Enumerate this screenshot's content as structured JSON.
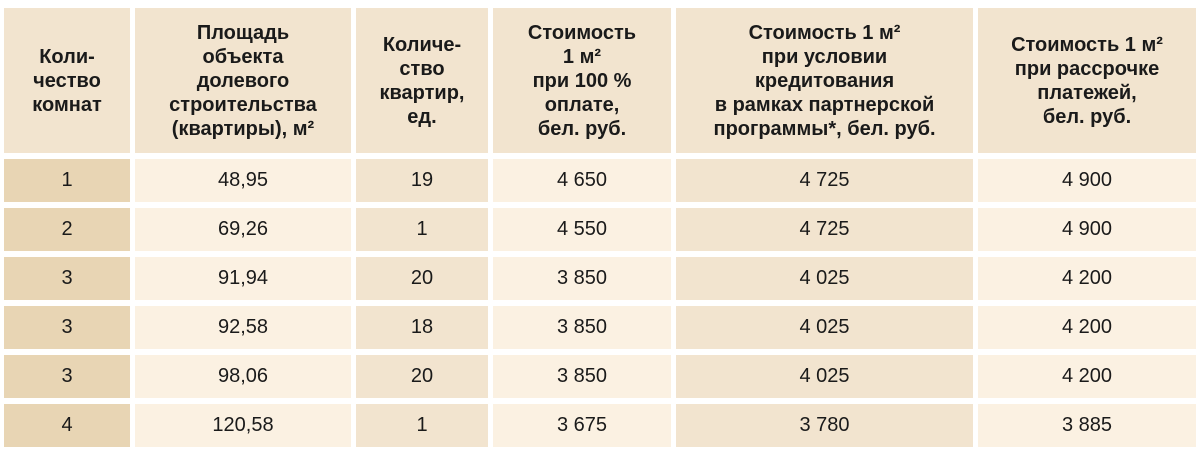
{
  "table": {
    "headers": [
      "Коли-\nчество\nкомнат",
      "Площадь\nобъекта\nдолевого\nстроительства\n(квартиры), м²",
      "Количе-\nство\nквартир,\nед.",
      "Стоимость\n1 м²\nпри 100 %\nоплате,\nбел. руб.",
      "Стоимость 1 м²\nпри условии\nкредитования\nв рамках партнерской\nпрограммы*, бел. руб.",
      "Стоимость 1 м²\nпри рассрочке\nплатежей,\nбел. руб."
    ],
    "rows": [
      [
        "1",
        "48,95",
        "19",
        "4 650",
        "4 725",
        "4 900"
      ],
      [
        "2",
        "69,26",
        "1",
        "4 550",
        "4 725",
        "4 900"
      ],
      [
        "3",
        "91,94",
        "20",
        "3 850",
        "4 025",
        "4 200"
      ],
      [
        "3",
        "92,58",
        "18",
        "3 850",
        "4 025",
        "4 200"
      ],
      [
        "3",
        "98,06",
        "20",
        "3 850",
        "4 025",
        "4 200"
      ],
      [
        "4",
        "120,58",
        "1",
        "3 675",
        "3 780",
        "3 885"
      ]
    ]
  },
  "colors": {
    "header_bg": "#f2e4cf",
    "first_col_bg": "#e8d5b4",
    "light_bg": "#fbf1e2",
    "dark_bg": "#f2e4cf",
    "text": "#1a1a1a"
  }
}
